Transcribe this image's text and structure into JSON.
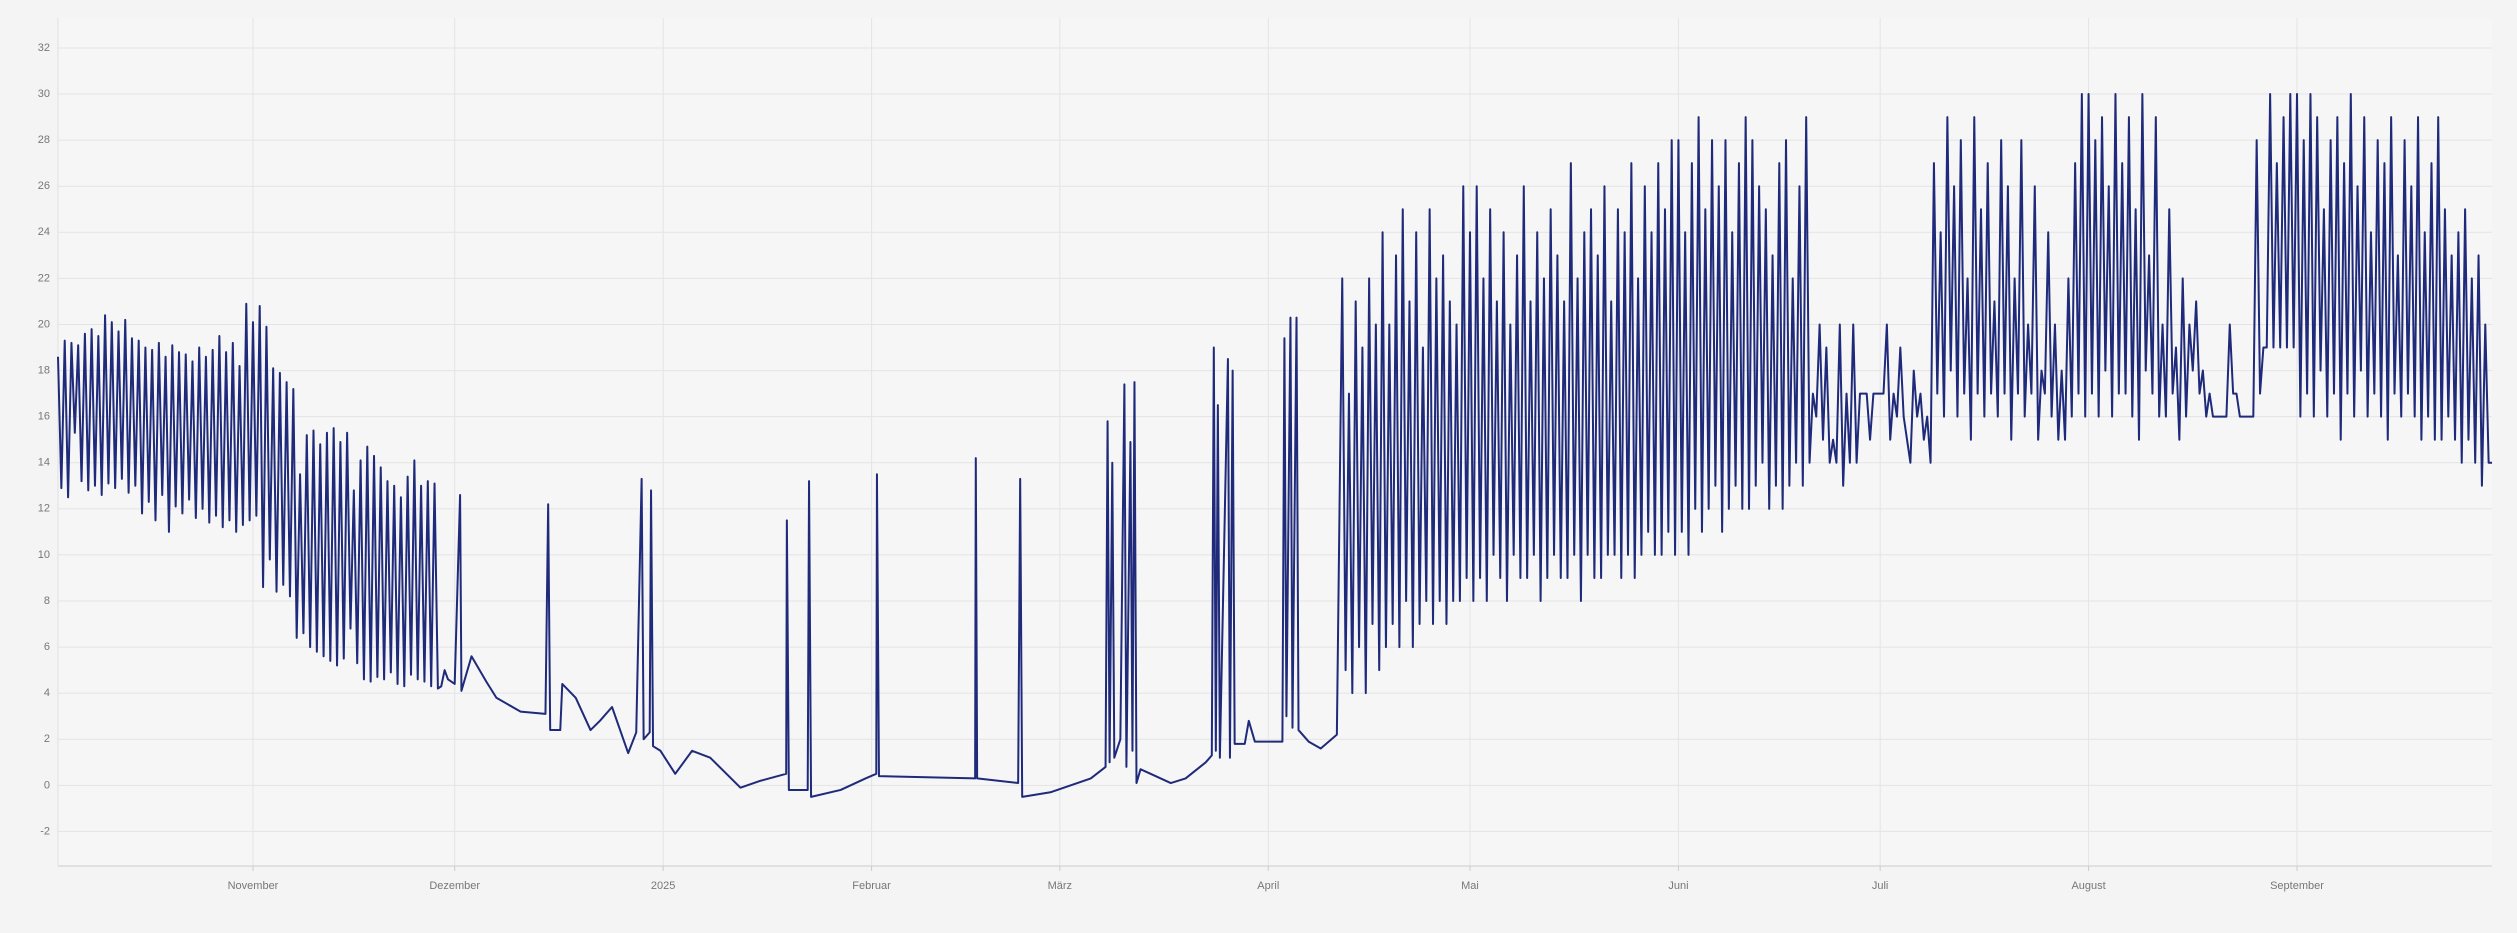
{
  "chart_data": {
    "type": "line",
    "color": "#1f2a7a",
    "grid": true,
    "xlim": [
      2,
      364
    ],
    "ylim": [
      -3.5,
      33.3
    ],
    "xticks": [
      {
        "value": 31,
        "label": "November"
      },
      {
        "value": 61,
        "label": "Dezember"
      },
      {
        "value": 92,
        "label": "2025"
      },
      {
        "value": 123,
        "label": "Februar"
      },
      {
        "value": 151,
        "label": "März"
      },
      {
        "value": 182,
        "label": "April"
      },
      {
        "value": 212,
        "label": "Mai"
      },
      {
        "value": 243,
        "label": "Juni"
      },
      {
        "value": 273,
        "label": "Juli"
      },
      {
        "value": 304,
        "label": "August"
      },
      {
        "value": 335,
        "label": "September"
      }
    ],
    "yticks": [
      -2,
      0,
      2,
      4,
      6,
      8,
      10,
      12,
      14,
      16,
      18,
      20,
      22,
      24,
      26,
      28,
      30,
      32
    ],
    "x": [
      2,
      2.5,
      3,
      3.5,
      4,
      4.5,
      5,
      5.5,
      6,
      6.5,
      7,
      7.5,
      8,
      8.5,
      9,
      9.5,
      10,
      10.5,
      11,
      11.5,
      12,
      12.5,
      13,
      13.5,
      14,
      14.5,
      15,
      15.5,
      16,
      16.5,
      17,
      17.5,
      18,
      18.5,
      19,
      19.5,
      20,
      20.5,
      21,
      21.5,
      22,
      22.5,
      23,
      23.5,
      24,
      24.5,
      25,
      25.5,
      26,
      26.5,
      27,
      27.5,
      28,
      28.5,
      29,
      29.5,
      30,
      30.5,
      31,
      31.5,
      32,
      32.5,
      33,
      33.5,
      34,
      34.5,
      35,
      35.5,
      36,
      36.5,
      37,
      37.5,
      38,
      38.5,
      39,
      39.5,
      40,
      40.5,
      41,
      41.5,
      42,
      42.5,
      43,
      43.5,
      44,
      44.5,
      45,
      45.5,
      46,
      46.5,
      47,
      47.5,
      48,
      48.5,
      49,
      49.5,
      50,
      50.5,
      51,
      51.5,
      52,
      52.5,
      53,
      53.5,
      54,
      54.5,
      55,
      55.5,
      56,
      56.5,
      57,
      57.5,
      58,
      58.5,
      59,
      59.5,
      60,
      61,
      61.8,
      62,
      63.5,
      65.7,
      67.2,
      70.8,
      74.5,
      74.9,
      75.2,
      76.7,
      77,
      79,
      81.2,
      82.6,
      84.4,
      86.8,
      88,
      88.8,
      89.1,
      90,
      90.2,
      90.5,
      91.6,
      93.8,
      96.3,
      99,
      103.5,
      106.5,
      110.3,
      110.4,
      110.7,
      113.5,
      113.7,
      114,
      118.4,
      122.1,
      123.7,
      123.8,
      124.1,
      138.4,
      138.5,
      138.7,
      144.8,
      145.1,
      145.4,
      149.6,
      155.6,
      157.8,
      158.1,
      158.4,
      158.8,
      159.1,
      160,
      160.6,
      160.9,
      161.5,
      161.8,
      162.1,
      162.4,
      163,
      164.5,
      167.5,
      169.7,
      172.7,
      173.6,
      173.9,
      174.2,
      174.5,
      174.8,
      176,
      176.3,
      176.7,
      177,
      178.5,
      179.1,
      180,
      184.1,
      184.4,
      184.7,
      185.3,
      185.6,
      186.2,
      186.5,
      188,
      189.8,
      192.2,
      193,
      193.5,
      194,
      194.5,
      195,
      195.5,
      196,
      196.5,
      197,
      197.5,
      198,
      198.5,
      199,
      199.5,
      200,
      200.5,
      201,
      201.5,
      202,
      202.5,
      203,
      203.5,
      204,
      204.5,
      205,
      205.5,
      206,
      206.5,
      207,
      207.5,
      208,
      208.5,
      209,
      209.5,
      210,
      210.5,
      211,
      211.5,
      212,
      212.5,
      213,
      213.5,
      214,
      214.5,
      215,
      215.5,
      216,
      216.5,
      217,
      217.5,
      218,
      218.5,
      219,
      219.5,
      220,
      220.5,
      221,
      221.5,
      222,
      222.5,
      223,
      223.5,
      224,
      224.5,
      225,
      225.5,
      226,
      226.5,
      227,
      227.5,
      228,
      228.5,
      229,
      229.5,
      230,
      230.5,
      231,
      231.5,
      232,
      232.5,
      233,
      233.5,
      234,
      234.5,
      235,
      235.5,
      236,
      236.5,
      237,
      237.5,
      238,
      238.5,
      239,
      239.5,
      240,
      240.5,
      241,
      241.5,
      242,
      242.5,
      243,
      243.5,
      244,
      244.5,
      245,
      245.5,
      246,
      246.5,
      247,
      247.5,
      248,
      248.5,
      249,
      249.5,
      250,
      250.5,
      251,
      251.5,
      252,
      252.5,
      253,
      253.5,
      254,
      254.5,
      255,
      255.5,
      256,
      256.5,
      257,
      257.5,
      258,
      258.5,
      259,
      259.5,
      260,
      260.5,
      261,
      261.5,
      262,
      262.5,
      263,
      263.5,
      264,
      264.5,
      265,
      265.5,
      266,
      266.5,
      267,
      267.5,
      268,
      268.5,
      269,
      269.5,
      270,
      270.5,
      271,
      271.5,
      272,
      272.5,
      273,
      273.5,
      274,
      274.5,
      275,
      275.5,
      276,
      276.5,
      277,
      277.5,
      278,
      278.5,
      279,
      279.5,
      280,
      280.5,
      281,
      281.5,
      282,
      282.5,
      283,
      283.5,
      284,
      284.5,
      285,
      285.5,
      286,
      286.5,
      287,
      287.5,
      288,
      288.5,
      289,
      289.5,
      290,
      290.5,
      291,
      291.5,
      292,
      292.5,
      293,
      293.5,
      294,
      294.5,
      295,
      295.5,
      296,
      296.5,
      297,
      297.5,
      298,
      298.5,
      299,
      299.5,
      300,
      300.5,
      301,
      301.5,
      302,
      302.5,
      303,
      303.5,
      304,
      304.5,
      305,
      305.5,
      306,
      306.5,
      307,
      307.5,
      308,
      308.5,
      309,
      309.5,
      310,
      310.5,
      311,
      311.5,
      312,
      312.5,
      313,
      313.5,
      314,
      314.5,
      315,
      315.5,
      316,
      316.5,
      317,
      317.5,
      318,
      318.5,
      319,
      319.5,
      320,
      320.5,
      321,
      321.5,
      322,
      322.5,
      323,
      323.5,
      324,
      324.5,
      325,
      325.5,
      326,
      326.5,
      327,
      327.5,
      328,
      328.5,
      329,
      329.5,
      330,
      330.5,
      331,
      331.5,
      332,
      332.5,
      333,
      333.5,
      334,
      334.5,
      335,
      335.5,
      336,
      336.5,
      337,
      337.5,
      338,
      338.5,
      339,
      339.5,
      340,
      340.5,
      341,
      341.5,
      342,
      342.5,
      343,
      343.5,
      344,
      344.5,
      345,
      345.5,
      346,
      346.5,
      347,
      347.5,
      348,
      348.5,
      349,
      349.5,
      350,
      350.5,
      351,
      351.5,
      352,
      352.5,
      353,
      353.5,
      354,
      354.5,
      355,
      355.5,
      356,
      356.5,
      357,
      357.5,
      358,
      358.5,
      359,
      359.5,
      360,
      360.5,
      361,
      361.5,
      362,
      362.5,
      363,
      363.5,
      364
    ],
    "values": [
      18.6,
      12.9,
      19.3,
      12.5,
      19.2,
      15.3,
      19.1,
      13.2,
      19.6,
      12.8,
      19.8,
      13.0,
      19.5,
      12.6,
      20.4,
      13.1,
      20.1,
      12.9,
      19.7,
      13.3,
      20.2,
      12.7,
      19.4,
      13.0,
      19.3,
      11.8,
      19.0,
      12.3,
      18.9,
      11.5,
      19.2,
      12.6,
      18.6,
      11.0,
      19.1,
      12.1,
      18.8,
      11.8,
      18.7,
      12.4,
      18.4,
      11.6,
      19.0,
      12.0,
      18.6,
      11.4,
      18.9,
      11.7,
      19.5,
      11.2,
      18.8,
      11.5,
      19.2,
      11.0,
      18.2,
      11.3,
      20.9,
      11.5,
      20.1,
      11.7,
      20.8,
      8.6,
      19.9,
      9.8,
      18.1,
      8.4,
      17.9,
      8.7,
      17.5,
      8.2,
      17.2,
      6.4,
      13.5,
      6.6,
      15.2,
      6.0,
      15.4,
      5.8,
      14.8,
      5.6,
      15.3,
      5.4,
      15.5,
      5.2,
      14.9,
      5.5,
      15.3,
      6.8,
      12.8,
      5.3,
      14.1,
      4.6,
      14.7,
      4.5,
      14.3,
      4.7,
      13.8,
      4.6,
      13.2,
      4.9,
      13.0,
      4.4,
      12.5,
      4.3,
      13.4,
      4.8,
      14.1,
      4.6,
      13.0,
      4.5,
      13.2,
      4.3,
      13.1,
      4.2,
      4.3,
      5.0,
      4.6,
      4.4,
      12.6,
      4.1,
      5.6,
      4.5,
      3.8,
      3.2,
      3.1,
      12.2,
      2.4,
      2.4,
      4.4,
      3.8,
      2.4,
      2.8,
      3.4,
      1.4,
      2.3,
      13.3,
      2.0,
      2.3,
      12.8,
      1.7,
      1.5,
      0.5,
      1.5,
      1.2,
      -0.1,
      0.2,
      0.5,
      11.5,
      -0.2,
      -0.2,
      13.2,
      -0.5,
      -0.2,
      0.3,
      0.5,
      13.5,
      0.4,
      0.3,
      14.2,
      0.3,
      0.1,
      13.3,
      -0.5,
      -0.3,
      0.3,
      0.8,
      15.8,
      1.0,
      14.0,
      1.2,
      2.0,
      17.4,
      0.8,
      14.9,
      1.5,
      17.5,
      0.1,
      0.7,
      0.5,
      0.1,
      0.3,
      1.0,
      1.3,
      19.0,
      1.5,
      16.5,
      1.2,
      18.5,
      1.2,
      18.0,
      1.8,
      1.8,
      2.8,
      1.9,
      1.9,
      19.4,
      3.0,
      20.3,
      2.5,
      20.3,
      2.4,
      1.9,
      1.6,
      2.2,
      22,
      5,
      17,
      4,
      21,
      6,
      19,
      4,
      22,
      7,
      20,
      5,
      24,
      6,
      20,
      7,
      23,
      6,
      25,
      8,
      21,
      6,
      24,
      7,
      19,
      8,
      25,
      7,
      22,
      8,
      23,
      7,
      21,
      8,
      20,
      8,
      26,
      9,
      24,
      8,
      26,
      9,
      22,
      8,
      25,
      10,
      21,
      9,
      24,
      8,
      20,
      10,
      23,
      9,
      26,
      9,
      21,
      10,
      24,
      8,
      22,
      9,
      25,
      10,
      23,
      9,
      21,
      9,
      27,
      10,
      22,
      8,
      24,
      10,
      25,
      9,
      23,
      9,
      26,
      10,
      21,
      10,
      25,
      9,
      24,
      10,
      27,
      9,
      22,
      10,
      26,
      11,
      24,
      10,
      27,
      10,
      25,
      11,
      28,
      10,
      28,
      11,
      24,
      10,
      27,
      12,
      29,
      11,
      25,
      12,
      28,
      13,
      26,
      11,
      28,
      12,
      24,
      13,
      27,
      12,
      29,
      12,
      28,
      13,
      26,
      14,
      25,
      12,
      23,
      13,
      27,
      12,
      28,
      13,
      22,
      14,
      26,
      13,
      29,
      14,
      17,
      16,
      20,
      15,
      19,
      14,
      15,
      14,
      20,
      13,
      17,
      14,
      20,
      14,
      17,
      17,
      17,
      15,
      17,
      17,
      17,
      17,
      20,
      15,
      17,
      16,
      19,
      16,
      15,
      14,
      18,
      16,
      17,
      15,
      16,
      14,
      27,
      17,
      24,
      16,
      29,
      18,
      26,
      16,
      28,
      17,
      22,
      15,
      29,
      17,
      25,
      16,
      27,
      17,
      21,
      16,
      28,
      17,
      26,
      15,
      22,
      17,
      28,
      16,
      20,
      17,
      26,
      15,
      18,
      17,
      24,
      16,
      20,
      15,
      18,
      15,
      22,
      16,
      27,
      17,
      30,
      16,
      30,
      17,
      28,
      16,
      29,
      18,
      26,
      16,
      30,
      17,
      27,
      17,
      29,
      16,
      25,
      15,
      30,
      18,
      23,
      17,
      29,
      16,
      20,
      16,
      25,
      17,
      19,
      15,
      22,
      16,
      20,
      18,
      21,
      17,
      18,
      16,
      17,
      16,
      16,
      16,
      16,
      16,
      20,
      17,
      17,
      16,
      16,
      16,
      16,
      16,
      28,
      17,
      19,
      19,
      30,
      19,
      27,
      19,
      29,
      19,
      30,
      19,
      30,
      16,
      28,
      17,
      30,
      16,
      29,
      18,
      25,
      16,
      28,
      17,
      29,
      15,
      27,
      17,
      30,
      16,
      26,
      18,
      29,
      16,
      24,
      17,
      28,
      16,
      27,
      15,
      29,
      17,
      23,
      16,
      28,
      17,
      26,
      16,
      29,
      15,
      24,
      16,
      27,
      15,
      29,
      15,
      25,
      16,
      23,
      15,
      24,
      14,
      25,
      15,
      22,
      14,
      23,
      13,
      20,
      14,
      14
    ]
  }
}
